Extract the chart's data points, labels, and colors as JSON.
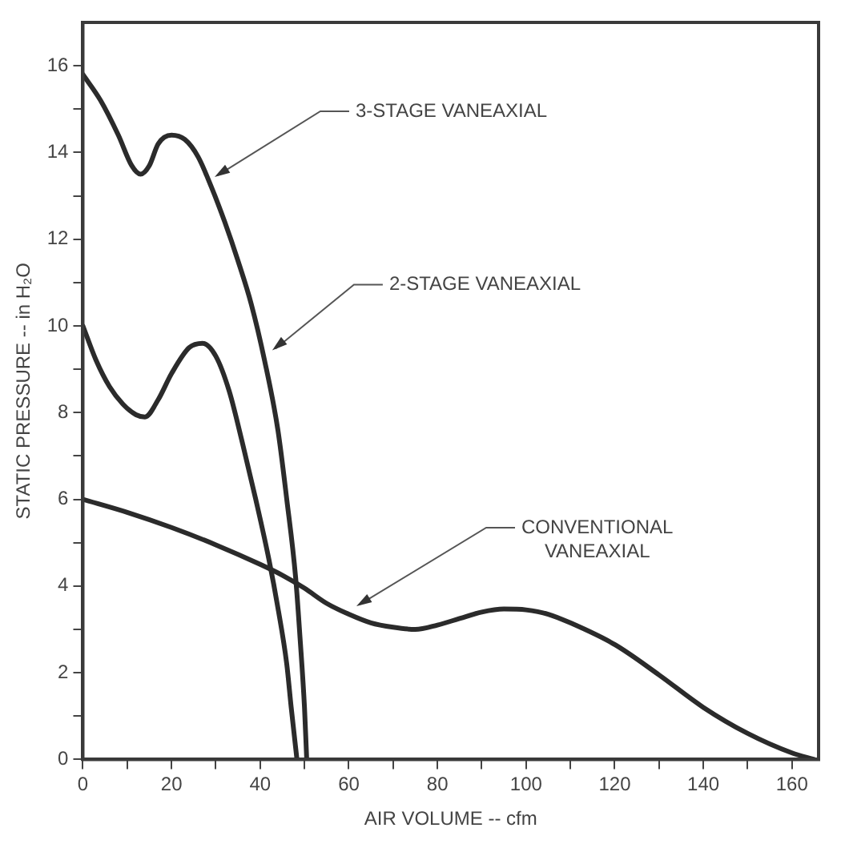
{
  "chart_data": {
    "type": "line",
    "xlabel": "AIR VOLUME -- cfm",
    "ylabel": "STATIC PRESSURE -- in H₂O",
    "xlim": [
      0,
      166
    ],
    "ylim": [
      0,
      17
    ],
    "xticks": [
      0,
      {
        "value": 10,
        "label": null
      },
      20,
      {
        "value": 30,
        "label": null
      },
      40,
      {
        "value": 50,
        "label": null
      },
      60,
      {
        "value": 70,
        "label": null
      },
      80,
      {
        "value": 90,
        "label": null
      },
      100,
      {
        "value": 110,
        "label": null
      },
      120,
      {
        "value": 130,
        "label": null
      },
      140,
      {
        "value": 150,
        "label": null
      },
      160
    ],
    "yticks": [
      0,
      {
        "value": 1,
        "label": null
      },
      2,
      {
        "value": 3,
        "label": null
      },
      4,
      {
        "value": 5,
        "label": null
      },
      6,
      {
        "value": 7,
        "label": null
      },
      8,
      {
        "value": 9,
        "label": null
      },
      10,
      {
        "value": 11,
        "label": null
      },
      12,
      {
        "value": 13,
        "label": null
      },
      14,
      {
        "value": 15,
        "label": null
      },
      16
    ],
    "grid": false,
    "legend": false,
    "marker": "none",
    "line_style": "solid",
    "series": [
      {
        "color": "#2b2b2b",
        "x": [
          0,
          4,
          8,
          11,
          13,
          15,
          17,
          20,
          23,
          26,
          29,
          32,
          35,
          38,
          41,
          44,
          46,
          48,
          49,
          50,
          50.5
        ],
        "values": [
          15.8,
          15.2,
          14.4,
          13.7,
          13.5,
          13.7,
          14.2,
          14.4,
          14.3,
          13.9,
          13.2,
          12.4,
          11.5,
          10.5,
          9.2,
          7.6,
          6.0,
          4.2,
          2.8,
          1.2,
          0
        ]
      },
      {
        "color": "#2b2b2b",
        "x": [
          0,
          3,
          6,
          9,
          12,
          14,
          17,
          20,
          24,
          27,
          30,
          33,
          36,
          39,
          42,
          44,
          46,
          47,
          48.3
        ],
        "values": [
          10,
          9.2,
          8.6,
          8.2,
          7.95,
          7.9,
          8.3,
          8.9,
          9.5,
          9.6,
          9.3,
          8.5,
          7.3,
          6.0,
          4.6,
          3.5,
          2.2,
          1.2,
          0
        ]
      },
      {
        "color": "#2b2b2b",
        "x": [
          0,
          10,
          20,
          30,
          40,
          45,
          50,
          55,
          60,
          65,
          70,
          75,
          80,
          85,
          90,
          95,
          100,
          105,
          110,
          120,
          130,
          140,
          150,
          160,
          165
        ],
        "values": [
          6,
          5.7,
          5.35,
          4.95,
          4.5,
          4.25,
          3.95,
          3.6,
          3.35,
          3.15,
          3.05,
          3.0,
          3.1,
          3.25,
          3.4,
          3.47,
          3.45,
          3.35,
          3.15,
          2.65,
          1.95,
          1.2,
          0.6,
          0.15,
          0
        ]
      }
    ],
    "annotations": [
      {
        "text": "3-STAGE VANEAXIAL",
        "x": 29,
        "y": 13.4
      },
      {
        "text": "2-STAGE VANEAXIAL",
        "x": 42,
        "y": 9.4
      },
      {
        "text": "CONVENTIONAL VANEAXIAL",
        "x": 61,
        "y": 3.5
      }
    ]
  }
}
